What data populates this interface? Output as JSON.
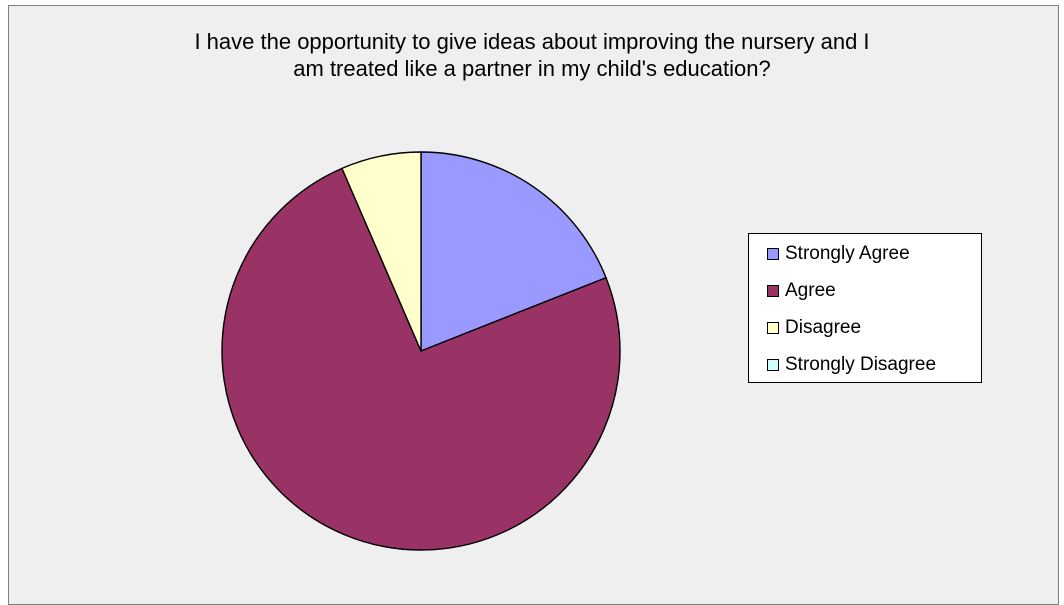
{
  "chart_data": {
    "type": "pie",
    "title_lines": [
      "I have the opportunity to give ideas about improving the nursery and I",
      "am treated like a partner in my child's education?"
    ],
    "categories": [
      "Strongly Agree",
      "Agree",
      "Disagree",
      "Strongly Disagree"
    ],
    "values": [
      19,
      74.5,
      6.5,
      0
    ],
    "unit": "percent",
    "colors": [
      "#9999ff",
      "#993366",
      "#ffffcc",
      "#ccffff"
    ],
    "legend_position": "right",
    "start_angle": "12 o'clock, clockwise"
  }
}
